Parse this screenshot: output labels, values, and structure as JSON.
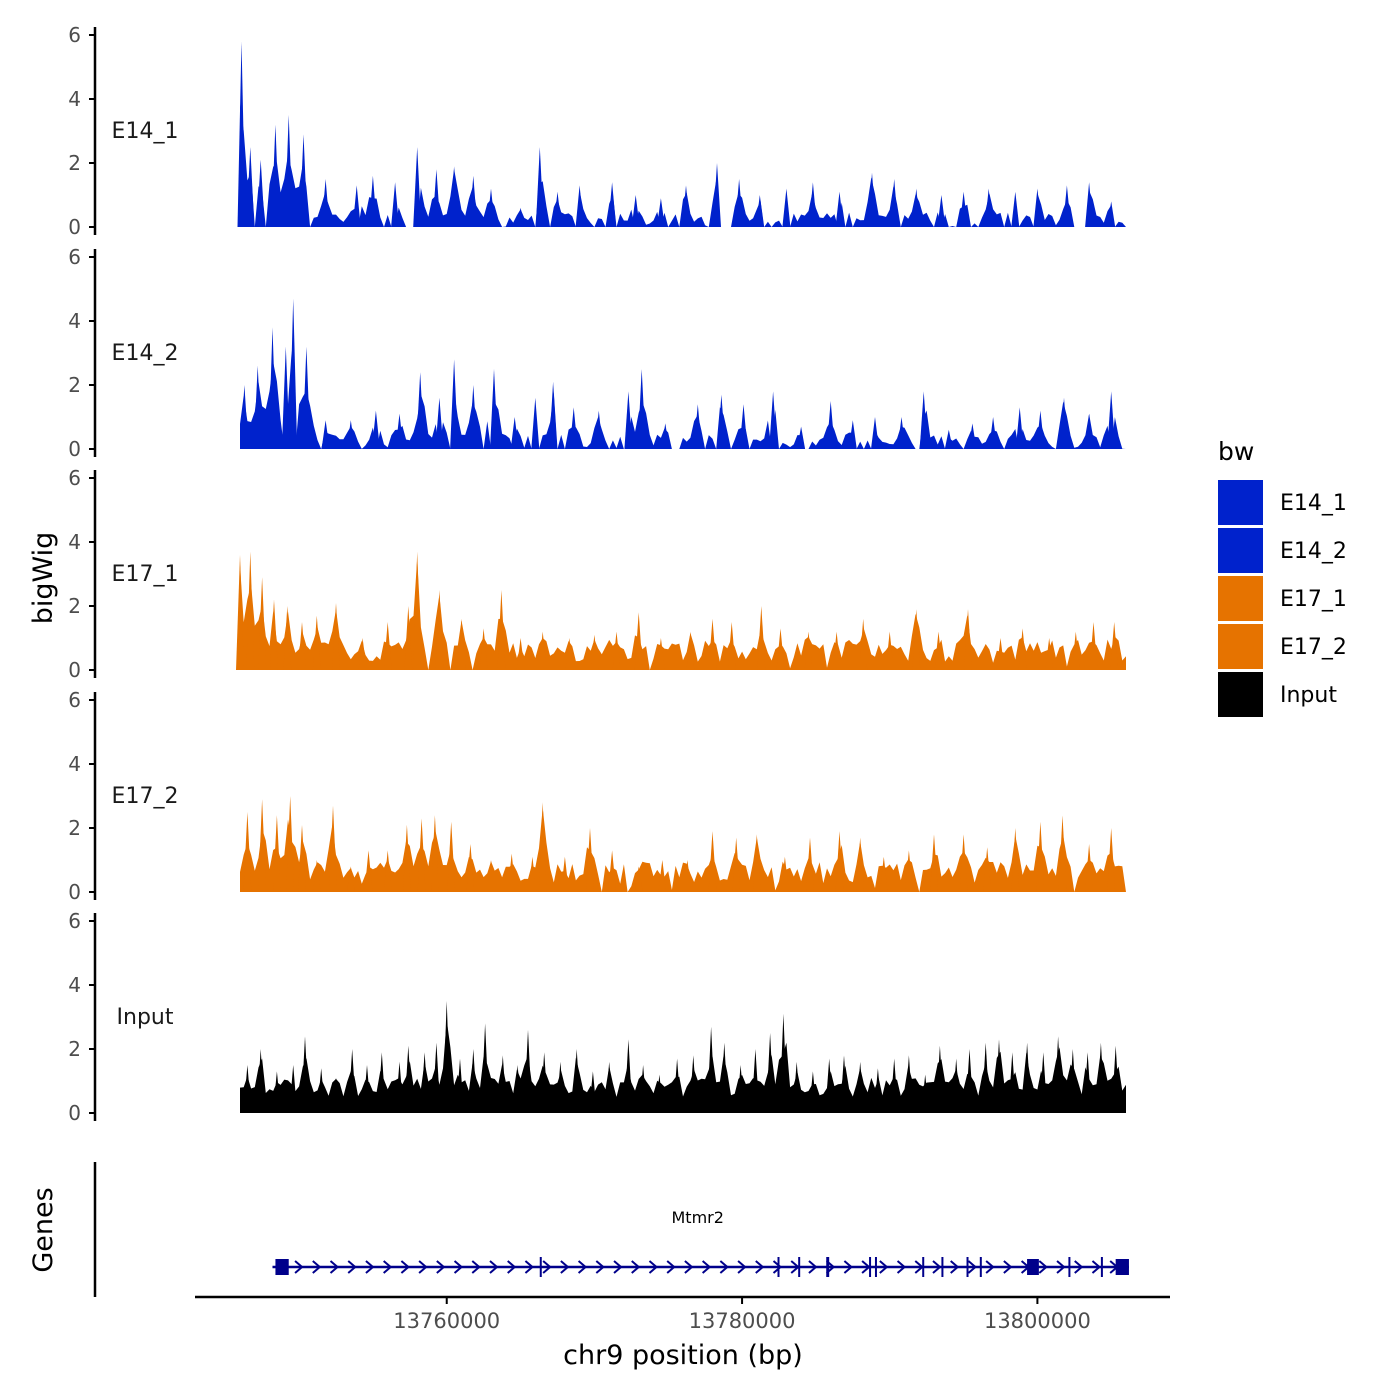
{
  "chart_data": {
    "type": "area",
    "title": "",
    "xlabel": "chr9 position (bp)",
    "ylabel": "bigWig",
    "genes_label": "Genes",
    "ylim": [
      0,
      6
    ],
    "y_ticks": [
      0,
      2,
      4,
      6
    ],
    "y_tick_labels": [
      "0",
      "2",
      "4",
      "6"
    ],
    "xlim": [
      13742000,
      13808000
    ],
    "x_ticks": [
      13760000,
      13780000,
      13800000
    ],
    "x_tick_labels": [
      "13760000",
      "13780000",
      "13800000"
    ],
    "legend": {
      "title": "bw",
      "position": "right",
      "entries": [
        {
          "label": "E14_1",
          "color": "#0022cc"
        },
        {
          "label": "E14_2",
          "color": "#0022cc"
        },
        {
          "label": "E17_1",
          "color": "#e67300"
        },
        {
          "label": "E17_2",
          "color": "#e67300"
        },
        {
          "label": "Input",
          "color": "#000000"
        }
      ]
    },
    "series": [
      {
        "name": "E14_1",
        "color": "#0022cc",
        "x_start": 13746000,
        "x_end": 13806000,
        "peaks": [
          {
            "x": 13746100,
            "y": 5.8
          },
          {
            "x": 13746700,
            "y": 2.5
          },
          {
            "x": 13747400,
            "y": 2.1
          },
          {
            "x": 13748400,
            "y": 3.2
          },
          {
            "x": 13749300,
            "y": 3.5
          },
          {
            "x": 13750300,
            "y": 2.9
          },
          {
            "x": 13751800,
            "y": 1.5
          },
          {
            "x": 13753900,
            "y": 1.3
          },
          {
            "x": 13755000,
            "y": 1.6
          },
          {
            "x": 13756500,
            "y": 1.4
          },
          {
            "x": 13758000,
            "y": 2.5
          },
          {
            "x": 13759300,
            "y": 1.8
          },
          {
            "x": 13760500,
            "y": 1.9
          },
          {
            "x": 13761800,
            "y": 1.6
          },
          {
            "x": 13763000,
            "y": 1.2
          },
          {
            "x": 13765000,
            "y": 0.6
          },
          {
            "x": 13766300,
            "y": 2.5
          },
          {
            "x": 13767500,
            "y": 1.1
          },
          {
            "x": 13769000,
            "y": 1.3
          },
          {
            "x": 13771200,
            "y": 1.4
          },
          {
            "x": 13772800,
            "y": 1.0
          },
          {
            "x": 13774500,
            "y": 0.9
          },
          {
            "x": 13776200,
            "y": 1.3
          },
          {
            "x": 13778300,
            "y": 2.0
          },
          {
            "x": 13779800,
            "y": 1.5
          },
          {
            "x": 13781200,
            "y": 1.0
          },
          {
            "x": 13783000,
            "y": 1.2
          },
          {
            "x": 13784800,
            "y": 1.4
          },
          {
            "x": 13786600,
            "y": 1.1
          },
          {
            "x": 13788800,
            "y": 1.7
          },
          {
            "x": 13790300,
            "y": 1.5
          },
          {
            "x": 13791800,
            "y": 1.2
          },
          {
            "x": 13793500,
            "y": 1.0
          },
          {
            "x": 13795000,
            "y": 1.1
          },
          {
            "x": 13796700,
            "y": 1.2
          },
          {
            "x": 13798500,
            "y": 1.1
          },
          {
            "x": 13800000,
            "y": 1.2
          },
          {
            "x": 13802000,
            "y": 1.3
          },
          {
            "x": 13803500,
            "y": 1.4
          },
          {
            "x": 13805000,
            "y": 0.8
          }
        ]
      },
      {
        "name": "E14_2",
        "color": "#0022cc",
        "x_start": 13746000,
        "x_end": 13806000,
        "peaks": [
          {
            "x": 13746300,
            "y": 2.0
          },
          {
            "x": 13747200,
            "y": 2.6
          },
          {
            "x": 13748200,
            "y": 3.8
          },
          {
            "x": 13749100,
            "y": 3.2
          },
          {
            "x": 13749600,
            "y": 4.7
          },
          {
            "x": 13750500,
            "y": 3.2
          },
          {
            "x": 13751800,
            "y": 0.9
          },
          {
            "x": 13753500,
            "y": 0.9
          },
          {
            "x": 13755200,
            "y": 1.2
          },
          {
            "x": 13756800,
            "y": 1.1
          },
          {
            "x": 13758200,
            "y": 2.4
          },
          {
            "x": 13759500,
            "y": 1.6
          },
          {
            "x": 13760500,
            "y": 2.8
          },
          {
            "x": 13761800,
            "y": 2.0
          },
          {
            "x": 13763200,
            "y": 2.5
          },
          {
            "x": 13764600,
            "y": 1.0
          },
          {
            "x": 13766000,
            "y": 1.6
          },
          {
            "x": 13767200,
            "y": 2.1
          },
          {
            "x": 13768600,
            "y": 1.3
          },
          {
            "x": 13770300,
            "y": 1.2
          },
          {
            "x": 13772300,
            "y": 1.8
          },
          {
            "x": 13773200,
            "y": 2.5
          },
          {
            "x": 13774800,
            "y": 0.8
          },
          {
            "x": 13777000,
            "y": 1.4
          },
          {
            "x": 13778600,
            "y": 1.7
          },
          {
            "x": 13780100,
            "y": 1.4
          },
          {
            "x": 13782100,
            "y": 1.8
          },
          {
            "x": 13784000,
            "y": 0.7
          },
          {
            "x": 13786000,
            "y": 1.5
          },
          {
            "x": 13787500,
            "y": 0.9
          },
          {
            "x": 13789000,
            "y": 1.0
          },
          {
            "x": 13790800,
            "y": 1.0
          },
          {
            "x": 13792300,
            "y": 1.8
          },
          {
            "x": 13794000,
            "y": 0.6
          },
          {
            "x": 13795600,
            "y": 0.8
          },
          {
            "x": 13797000,
            "y": 1.0
          },
          {
            "x": 13798800,
            "y": 1.3
          },
          {
            "x": 13800200,
            "y": 1.2
          },
          {
            "x": 13801800,
            "y": 1.6
          },
          {
            "x": 13803500,
            "y": 1.1
          },
          {
            "x": 13805000,
            "y": 1.8
          }
        ]
      },
      {
        "name": "E17_1",
        "color": "#e67300",
        "x_start": 13746000,
        "x_end": 13806000,
        "peaks": [
          {
            "x": 13746000,
            "y": 3.6
          },
          {
            "x": 13746700,
            "y": 3.7
          },
          {
            "x": 13747500,
            "y": 2.9
          },
          {
            "x": 13748300,
            "y": 2.2
          },
          {
            "x": 13749200,
            "y": 2.0
          },
          {
            "x": 13750200,
            "y": 1.5
          },
          {
            "x": 13751200,
            "y": 1.7
          },
          {
            "x": 13752500,
            "y": 2.1
          },
          {
            "x": 13754300,
            "y": 1.0
          },
          {
            "x": 13756000,
            "y": 1.5
          },
          {
            "x": 13757400,
            "y": 2.0
          },
          {
            "x": 13758000,
            "y": 3.7
          },
          {
            "x": 13759500,
            "y": 2.5
          },
          {
            "x": 13761000,
            "y": 1.6
          },
          {
            "x": 13762500,
            "y": 1.3
          },
          {
            "x": 13763700,
            "y": 2.5
          },
          {
            "x": 13765000,
            "y": 1.0
          },
          {
            "x": 13766500,
            "y": 1.2
          },
          {
            "x": 13768300,
            "y": 1.0
          },
          {
            "x": 13770000,
            "y": 1.1
          },
          {
            "x": 13771500,
            "y": 1.2
          },
          {
            "x": 13773000,
            "y": 1.8
          },
          {
            "x": 13774500,
            "y": 1.0
          },
          {
            "x": 13776500,
            "y": 1.2
          },
          {
            "x": 13778000,
            "y": 1.6
          },
          {
            "x": 13779300,
            "y": 1.5
          },
          {
            "x": 13781300,
            "y": 2.0
          },
          {
            "x": 13782600,
            "y": 1.3
          },
          {
            "x": 13784500,
            "y": 1.2
          },
          {
            "x": 13786400,
            "y": 1.2
          },
          {
            "x": 13788200,
            "y": 1.6
          },
          {
            "x": 13790000,
            "y": 1.2
          },
          {
            "x": 13791800,
            "y": 1.9
          },
          {
            "x": 13793300,
            "y": 1.2
          },
          {
            "x": 13795300,
            "y": 1.9
          },
          {
            "x": 13797500,
            "y": 1.0
          },
          {
            "x": 13799000,
            "y": 1.3
          },
          {
            "x": 13800800,
            "y": 1.0
          },
          {
            "x": 13802600,
            "y": 1.2
          },
          {
            "x": 13803800,
            "y": 1.5
          },
          {
            "x": 13805200,
            "y": 1.5
          }
        ]
      },
      {
        "name": "E17_2",
        "color": "#e67300",
        "x_start": 13746000,
        "x_end": 13806000,
        "peaks": [
          {
            "x": 13746500,
            "y": 2.5
          },
          {
            "x": 13747500,
            "y": 2.9
          },
          {
            "x": 13748500,
            "y": 2.4
          },
          {
            "x": 13749400,
            "y": 3.0
          },
          {
            "x": 13750200,
            "y": 2.1
          },
          {
            "x": 13751200,
            "y": 1.0
          },
          {
            "x": 13752300,
            "y": 2.7
          },
          {
            "x": 13753500,
            "y": 0.8
          },
          {
            "x": 13754700,
            "y": 1.3
          },
          {
            "x": 13756000,
            "y": 1.3
          },
          {
            "x": 13757300,
            "y": 2.1
          },
          {
            "x": 13758300,
            "y": 2.3
          },
          {
            "x": 13759200,
            "y": 2.4
          },
          {
            "x": 13760300,
            "y": 2.2
          },
          {
            "x": 13761600,
            "y": 1.5
          },
          {
            "x": 13763000,
            "y": 1.0
          },
          {
            "x": 13764400,
            "y": 1.2
          },
          {
            "x": 13765800,
            "y": 1.1
          },
          {
            "x": 13766500,
            "y": 2.8
          },
          {
            "x": 13768000,
            "y": 1.1
          },
          {
            "x": 13769700,
            "y": 2.0
          },
          {
            "x": 13771200,
            "y": 1.3
          },
          {
            "x": 13773000,
            "y": 0.8
          },
          {
            "x": 13774600,
            "y": 1.0
          },
          {
            "x": 13776300,
            "y": 1.0
          },
          {
            "x": 13778000,
            "y": 1.9
          },
          {
            "x": 13779600,
            "y": 1.7
          },
          {
            "x": 13781000,
            "y": 1.8
          },
          {
            "x": 13782900,
            "y": 1.1
          },
          {
            "x": 13784600,
            "y": 1.7
          },
          {
            "x": 13786600,
            "y": 1.9
          },
          {
            "x": 13788000,
            "y": 1.7
          },
          {
            "x": 13789600,
            "y": 1.1
          },
          {
            "x": 13791300,
            "y": 1.3
          },
          {
            "x": 13793000,
            "y": 1.8
          },
          {
            "x": 13795000,
            "y": 1.8
          },
          {
            "x": 13796600,
            "y": 1.4
          },
          {
            "x": 13798500,
            "y": 2.0
          },
          {
            "x": 13800200,
            "y": 2.2
          },
          {
            "x": 13801700,
            "y": 2.4
          },
          {
            "x": 13803500,
            "y": 1.5
          },
          {
            "x": 13805000,
            "y": 2.0
          }
        ]
      },
      {
        "name": "Input",
        "color": "#000000",
        "x_start": 13746000,
        "x_end": 13806000,
        "peaks": [
          {
            "x": 13746500,
            "y": 1.5
          },
          {
            "x": 13747400,
            "y": 2.0
          },
          {
            "x": 13748500,
            "y": 1.3
          },
          {
            "x": 13749600,
            "y": 1.5
          },
          {
            "x": 13750400,
            "y": 2.4
          },
          {
            "x": 13751500,
            "y": 1.4
          },
          {
            "x": 13752500,
            "y": 1.1
          },
          {
            "x": 13753600,
            "y": 2.0
          },
          {
            "x": 13754600,
            "y": 1.5
          },
          {
            "x": 13755600,
            "y": 1.9
          },
          {
            "x": 13756800,
            "y": 1.6
          },
          {
            "x": 13757400,
            "y": 2.1
          },
          {
            "x": 13758500,
            "y": 1.9
          },
          {
            "x": 13759300,
            "y": 2.2
          },
          {
            "x": 13760000,
            "y": 3.5
          },
          {
            "x": 13760900,
            "y": 1.7
          },
          {
            "x": 13761800,
            "y": 2.0
          },
          {
            "x": 13762600,
            "y": 2.8
          },
          {
            "x": 13763800,
            "y": 1.8
          },
          {
            "x": 13764800,
            "y": 1.5
          },
          {
            "x": 13765500,
            "y": 2.6
          },
          {
            "x": 13766600,
            "y": 1.9
          },
          {
            "x": 13767700,
            "y": 1.6
          },
          {
            "x": 13768800,
            "y": 2.0
          },
          {
            "x": 13769900,
            "y": 1.3
          },
          {
            "x": 13771000,
            "y": 1.6
          },
          {
            "x": 13772300,
            "y": 2.3
          },
          {
            "x": 13773300,
            "y": 1.5
          },
          {
            "x": 13774400,
            "y": 1.2
          },
          {
            "x": 13775600,
            "y": 1.7
          },
          {
            "x": 13776700,
            "y": 1.8
          },
          {
            "x": 13777900,
            "y": 2.7
          },
          {
            "x": 13778800,
            "y": 2.2
          },
          {
            "x": 13779900,
            "y": 1.5
          },
          {
            "x": 13780900,
            "y": 2.0
          },
          {
            "x": 13781900,
            "y": 2.5
          },
          {
            "x": 13782800,
            "y": 3.1
          },
          {
            "x": 13783700,
            "y": 1.6
          },
          {
            "x": 13784800,
            "y": 1.3
          },
          {
            "x": 13785900,
            "y": 1.7
          },
          {
            "x": 13786900,
            "y": 1.8
          },
          {
            "x": 13788000,
            "y": 1.6
          },
          {
            "x": 13789200,
            "y": 1.4
          },
          {
            "x": 13790300,
            "y": 1.7
          },
          {
            "x": 13791300,
            "y": 1.8
          },
          {
            "x": 13792400,
            "y": 1.2
          },
          {
            "x": 13793400,
            "y": 2.1
          },
          {
            "x": 13794500,
            "y": 1.7
          },
          {
            "x": 13795400,
            "y": 2.0
          },
          {
            "x": 13796500,
            "y": 2.2
          },
          {
            "x": 13797400,
            "y": 2.3
          },
          {
            "x": 13798300,
            "y": 1.9
          },
          {
            "x": 13799300,
            "y": 2.2
          },
          {
            "x": 13800400,
            "y": 1.9
          },
          {
            "x": 13801400,
            "y": 2.4
          },
          {
            "x": 13802400,
            "y": 2.0
          },
          {
            "x": 13803400,
            "y": 1.9
          },
          {
            "x": 13804300,
            "y": 2.2
          },
          {
            "x": 13805300,
            "y": 2.1
          }
        ]
      }
    ],
    "genes": [
      {
        "name": "Mtmr2",
        "strand": "+",
        "color": "#00008b",
        "start": 13748200,
        "end": 13806200,
        "exons": [
          {
            "start": 13748400,
            "end": 13749300
          },
          {
            "start": 13766300,
            "end": 13766400
          },
          {
            "start": 13782400,
            "end": 13782500
          },
          {
            "start": 13783800,
            "end": 13783900
          },
          {
            "start": 13785700,
            "end": 13785900
          },
          {
            "start": 13788600,
            "end": 13788700
          },
          {
            "start": 13789000,
            "end": 13789100
          },
          {
            "start": 13792200,
            "end": 13792300
          },
          {
            "start": 13793500,
            "end": 13793600
          },
          {
            "start": 13795200,
            "end": 13795300
          },
          {
            "start": 13796100,
            "end": 13796200
          },
          {
            "start": 13799300,
            "end": 13800100
          },
          {
            "start": 13802100,
            "end": 13802200
          },
          {
            "start": 13804300,
            "end": 13804400
          },
          {
            "start": 13805300,
            "end": 13806200
          }
        ]
      }
    ]
  }
}
